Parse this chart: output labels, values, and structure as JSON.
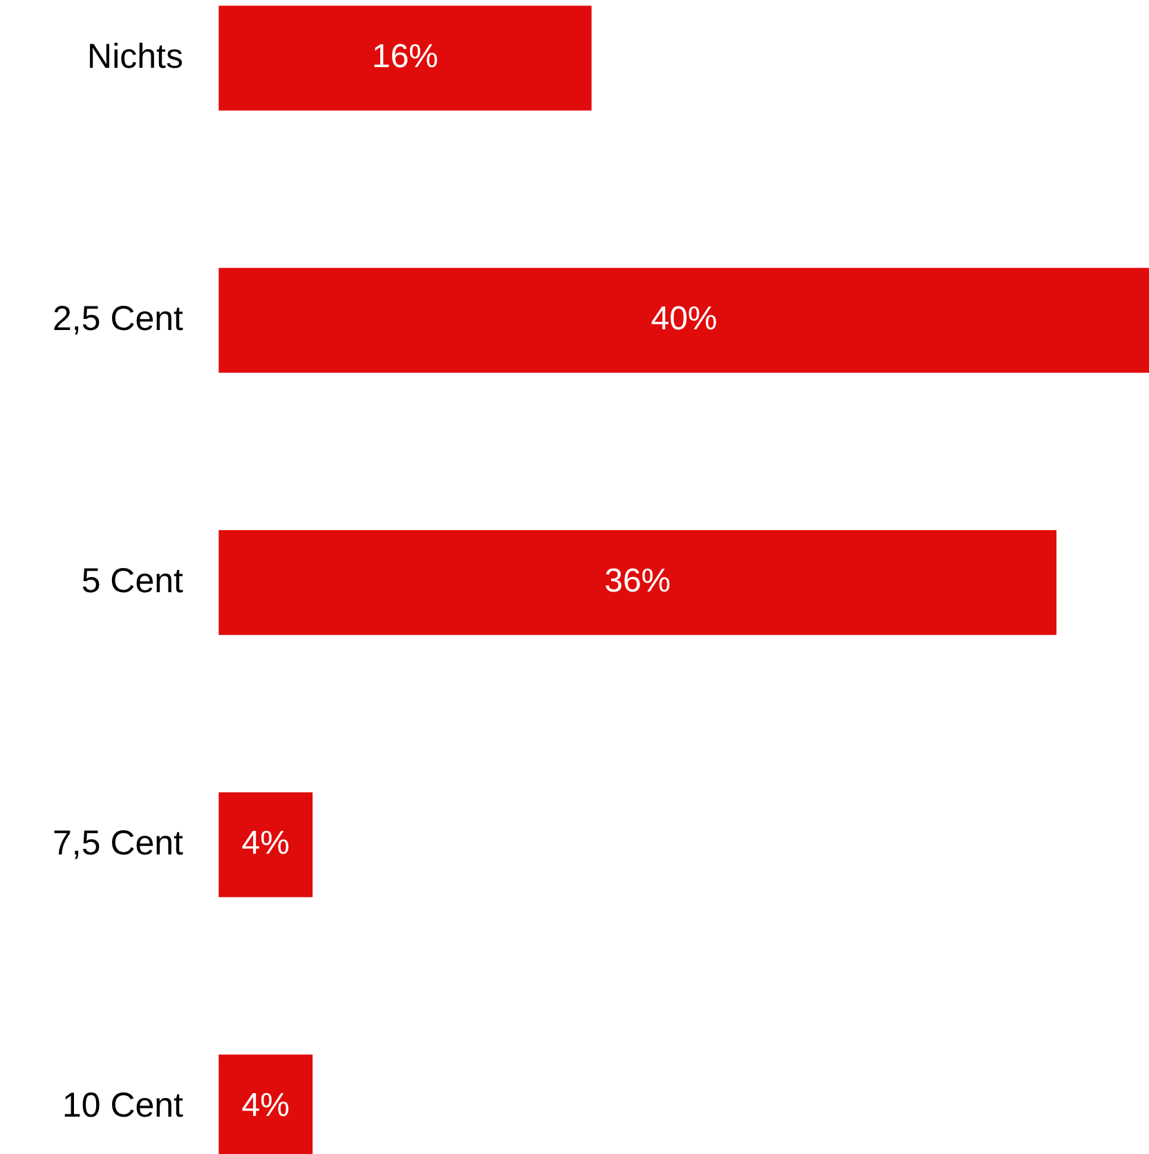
{
  "chart_data": {
    "type": "bar",
    "orientation": "horizontal",
    "categories": [
      "Nichts",
      "2,5 Cent",
      "5 Cent",
      "7,5 Cent",
      "10 Cent"
    ],
    "values": [
      16,
      40,
      36,
      4,
      4
    ],
    "color": "#e00b0b",
    "value_labels": [
      "16%",
      "40%",
      "36%",
      "4%",
      "4%"
    ],
    "xlim": [
      0,
      40
    ],
    "legend": false
  }
}
